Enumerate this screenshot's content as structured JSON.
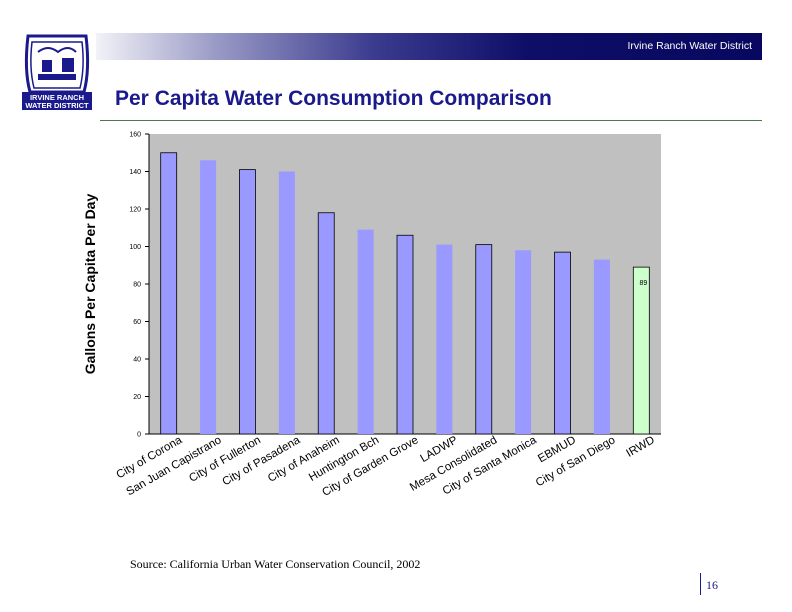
{
  "header": {
    "organization": "Irvine Ranch Water District",
    "title": "Per Capita Water Consumption Comparison"
  },
  "logo": {
    "line1": "IRVINE RANCH",
    "line2": "WATER DISTRICT",
    "icon": "water-district-logo-icon"
  },
  "footer": {
    "source": "Source: California Urban Water Conservation Council, 2002",
    "page_number": "16"
  },
  "colors": {
    "bar_dark": "#9999ff",
    "bar_light": "#9999ff",
    "bar_highlight": "#ccffcc",
    "plot_bg": "#c0c0c0",
    "title": "#1a1a8c"
  },
  "chart_data": {
    "type": "bar",
    "categories": [
      "City of Corona",
      "San Juan Capistrano",
      "City of Fullerton",
      "City of Pasadena",
      "City of Anaheim",
      "Huntington Bch",
      "City of Garden Grove",
      "LADWP",
      "Mesa Consolidated",
      "City of Santa Monica",
      "EBMUD",
      "City of San Diego",
      "IRWD"
    ],
    "values": [
      150,
      146,
      141,
      140,
      118,
      109,
      106,
      101,
      101,
      98,
      97,
      93,
      89
    ],
    "data_labels": [
      "",
      "",
      "",
      "",
      "",
      "",
      "",
      "",
      "",
      "",
      "",
      "",
      "89"
    ],
    "highlight_index": 12,
    "ylabel": "Gallons Per Capita Per Day",
    "ylim": [
      0,
      160
    ],
    "yticks": [
      0,
      20,
      40,
      60,
      80,
      100,
      120,
      140,
      160
    ],
    "grid": false,
    "legend": "none"
  }
}
